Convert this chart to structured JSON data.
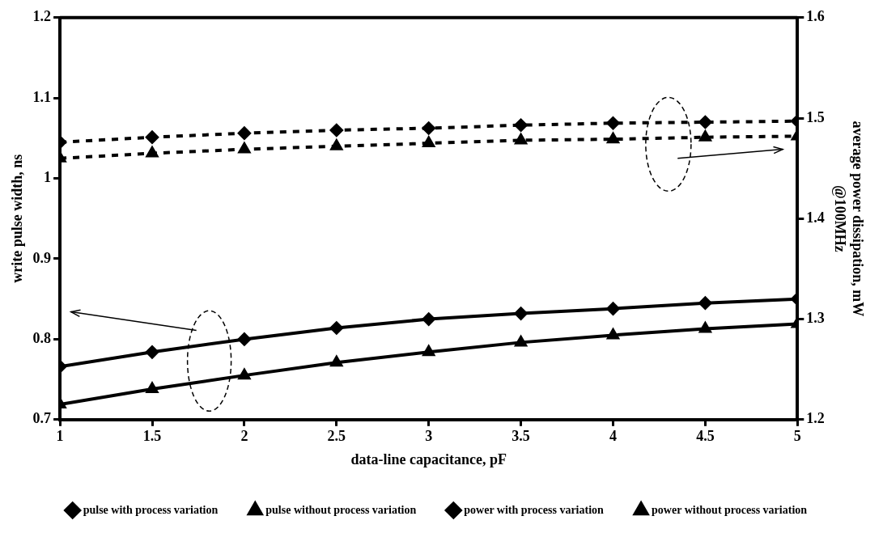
{
  "chart_data": {
    "type": "line",
    "xlabel": "data-line capacitance, pF",
    "ylabel": "write pulse width, ns",
    "y2label": "average power dissipation, mW\n@100MHz",
    "x": [
      1,
      1.5,
      2,
      2.5,
      3,
      3.5,
      4,
      4.5,
      5
    ],
    "xlim": [
      1,
      5
    ],
    "xticks": [
      1,
      1.5,
      2,
      2.5,
      3,
      3.5,
      4,
      4.5,
      5
    ],
    "ylim": [
      0.7,
      1.2
    ],
    "yticks": [
      0.7,
      0.8,
      0.9,
      1,
      1.1,
      1.2
    ],
    "y2lim": [
      1.2,
      1.6
    ],
    "y2ticks": [
      1.2,
      1.3,
      1.4,
      1.5,
      1.6
    ],
    "grid": false,
    "legend": "bottom",
    "series": [
      {
        "name": "pulse with process variation",
        "color": "#000000",
        "marker": "diamond",
        "line_style": "solid",
        "values": [
          0.766,
          0.784,
          0.8,
          0.814,
          0.825,
          0.832,
          0.838,
          0.845,
          0.85
        ]
      },
      {
        "name": "pulse without process variation",
        "color": "#000000",
        "marker": "triangle",
        "line_style": "solid",
        "values": [
          0.719,
          0.738,
          0.755,
          0.771,
          0.784,
          0.796,
          0.805,
          0.813,
          0.819
        ]
      },
      {
        "name": "power with process variation",
        "color": "#000000",
        "marker": "diamond",
        "line_style": "dashed",
        "axis": "y2",
        "values": [
          1.476,
          1.481,
          1.485,
          1.488,
          1.49,
          1.493,
          1.495,
          1.496,
          1.497
        ]
      },
      {
        "name": "power without process variation",
        "color": "#000000",
        "marker": "triangle",
        "line_style": "dashed",
        "axis": "y2",
        "values": [
          1.46,
          1.465,
          1.469,
          1.472,
          1.475,
          1.478,
          1.479,
          1.481,
          1.482
        ]
      }
    ]
  }
}
